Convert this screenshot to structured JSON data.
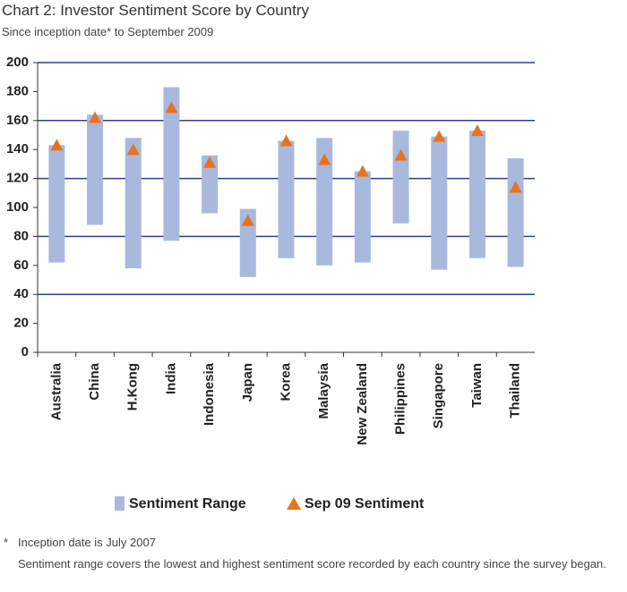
{
  "chart_data": {
    "type": "range",
    "title": "Chart 2: Investor Sentiment Score by Country",
    "subtitle": "Since inception date* to September 2009",
    "categories": [
      "Australia",
      "China",
      "H.Kong",
      "India",
      "Indonesia",
      "Japan",
      "Korea",
      "Malaysia",
      "New Zealand",
      "Philippines",
      "Singapore",
      "Taiwan",
      "Thailand"
    ],
    "series": [
      {
        "name": "Sentiment Range",
        "color": "#a9b9dd",
        "low": [
          62,
          88,
          58,
          77,
          96,
          52,
          65,
          60,
          62,
          89,
          57,
          65,
          59
        ],
        "high": [
          143,
          164,
          148,
          183,
          136,
          99,
          146,
          148,
          125,
          153,
          149,
          153,
          134
        ]
      },
      {
        "name": "Sep 09 Sentiment",
        "color": "#e8731f",
        "values": [
          143,
          162,
          140,
          169,
          131,
          91,
          146,
          133,
          125,
          136,
          149,
          153,
          114
        ]
      }
    ],
    "ylim": [
      0,
      200
    ],
    "yticks": [
      0,
      20,
      40,
      60,
      80,
      100,
      120,
      140,
      160,
      180,
      200
    ],
    "grid_color": "#2e3f8f"
  },
  "notes": {
    "marker": "*",
    "inception": "Inception date is July 2007",
    "range": "Sentiment range covers the lowest and highest sentiment score recorded by each country since the survey began."
  }
}
